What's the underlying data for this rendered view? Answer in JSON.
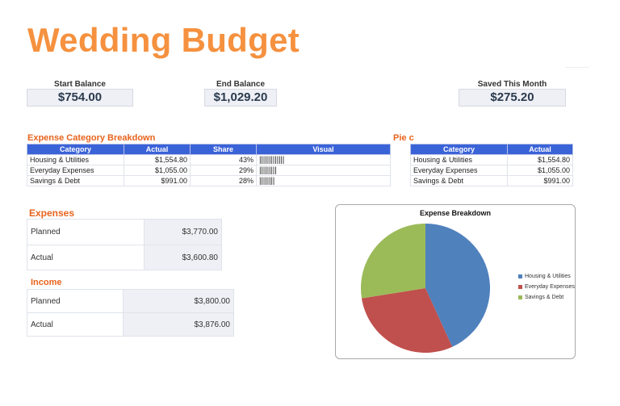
{
  "title": "Wedding Budget",
  "balances": [
    {
      "label": "Start Balance",
      "value": "$754.00"
    },
    {
      "label": "End Balance",
      "value": "$1,029.20"
    },
    {
      "label": "Saved This Month",
      "value": "$275.20"
    }
  ],
  "breakdown": {
    "heading": "Expense Category Breakdown",
    "columns": [
      "Category",
      "Actual",
      "Share",
      "Visual"
    ],
    "rows": [
      {
        "category": "Housing & Utilities",
        "actual": "$1,554.80",
        "share": "43%",
        "visual": "|||||||||||||"
      },
      {
        "category": "Everyday Expenses",
        "actual": "$1,055.00",
        "share": "29%",
        "visual": "|||||||||"
      },
      {
        "category": "Savings & Debt",
        "actual": "$991.00",
        "share": "28%",
        "visual": "||||||||"
      }
    ]
  },
  "pie_table": {
    "heading": "Pie c",
    "columns": [
      "Category",
      "Actual"
    ],
    "rows": [
      {
        "category": "Housing & Utilities",
        "actual": "$1,554.80"
      },
      {
        "category": "Everyday Expenses",
        "actual": "$1,055.00"
      },
      {
        "category": "Savings & Debt",
        "actual": "$991.00"
      }
    ]
  },
  "expenses": {
    "heading": "Expenses",
    "rows": [
      {
        "label": "Planned",
        "value": "$3,770.00"
      },
      {
        "label": "Actual",
        "value": "$3,600.80"
      }
    ]
  },
  "income": {
    "heading": "Income",
    "rows": [
      {
        "label": "Planned",
        "value": "$3,800.00"
      },
      {
        "label": "Actual",
        "value": "$3,876.00"
      }
    ]
  },
  "colors": {
    "accent": "#f5913f",
    "section": "#e8631c",
    "header": "#3b63d8"
  },
  "chart_data": {
    "type": "pie",
    "title": "Expense Breakdown",
    "categories": [
      "Housing & Utilities",
      "Everyday Expenses",
      "Savings & Debt"
    ],
    "values": [
      1554.8,
      1055.0,
      991.0
    ],
    "colors": [
      "#4f81bd",
      "#c0504d",
      "#9bbb59"
    ],
    "legend": "right"
  }
}
